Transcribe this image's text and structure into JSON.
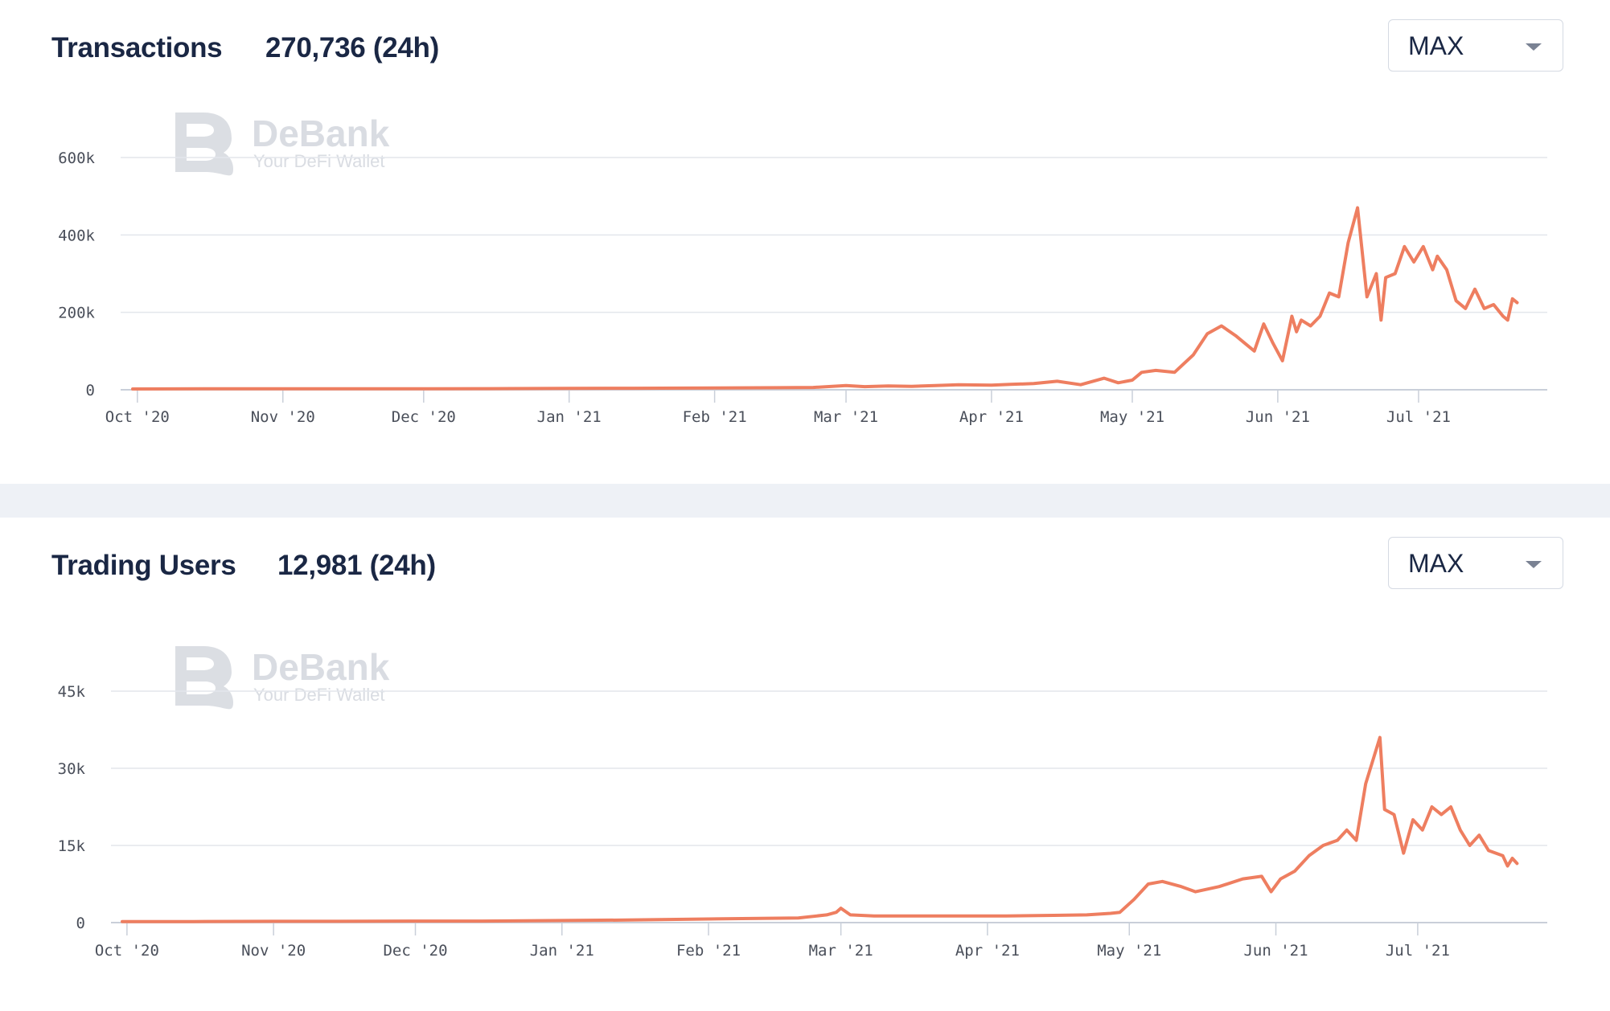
{
  "panels": {
    "transactions": {
      "title": "Transactions",
      "value": "270,736 (24h)",
      "range": "MAX"
    },
    "users": {
      "title": "Trading Users",
      "value": "12,981 (24h)",
      "range": "MAX"
    }
  },
  "watermark": {
    "name": "DeBank",
    "tagline": "Your DeFi Wallet"
  },
  "colors": {
    "line": "#ee7e60",
    "grid": "#e3e6ec",
    "axis": "#c9cfd9",
    "tick_text": "#4a4f5a",
    "watermark": "#d9dce2"
  },
  "chart_data": [
    {
      "type": "line",
      "title": "Transactions",
      "x_tick_labels": [
        "Oct '20",
        "Nov '20",
        "Dec '20",
        "Jan '21",
        "Feb '21",
        "Mar '21",
        "Apr '21",
        "May '21",
        "Jun '21",
        "Jul '21"
      ],
      "y_tick_labels": [
        "0",
        "200k",
        "400k",
        "600k"
      ],
      "y_ticks": [
        0,
        200000,
        400000,
        600000
      ],
      "ylim": [
        0,
        600000
      ],
      "xlim": [
        "2020-09-30",
        "2021-07-25"
      ],
      "grid": true,
      "legend": "none",
      "series": [
        {
          "x": [
            "2020-09-30",
            "2020-10-15",
            "2020-11-01",
            "2020-11-15",
            "2020-12-01",
            "2020-12-15",
            "2021-01-01",
            "2021-01-15",
            "2021-02-01",
            "2021-02-15",
            "2021-02-22",
            "2021-03-01",
            "2021-03-05",
            "2021-03-10",
            "2021-03-15",
            "2021-03-20",
            "2021-03-25",
            "2021-04-01",
            "2021-04-05",
            "2021-04-10",
            "2021-04-15",
            "2021-04-20",
            "2021-04-25",
            "2021-04-28",
            "2021-05-01",
            "2021-05-03",
            "2021-05-06",
            "2021-05-10",
            "2021-05-14",
            "2021-05-17",
            "2021-05-20",
            "2021-05-23",
            "2021-05-25",
            "2021-05-27",
            "2021-05-29",
            "2021-05-31",
            "2021-06-02",
            "2021-06-04",
            "2021-06-05",
            "2021-06-06",
            "2021-06-08",
            "2021-06-10",
            "2021-06-12",
            "2021-06-14",
            "2021-06-16",
            "2021-06-18",
            "2021-06-20",
            "2021-06-22",
            "2021-06-23",
            "2021-06-24",
            "2021-06-26",
            "2021-06-28",
            "2021-06-30",
            "2021-07-02",
            "2021-07-04",
            "2021-07-05",
            "2021-07-07",
            "2021-07-09",
            "2021-07-11",
            "2021-07-13",
            "2021-07-15",
            "2021-07-17",
            "2021-07-19",
            "2021-07-20",
            "2021-07-21",
            "2021-07-22"
          ],
          "values": [
            2000,
            2500,
            2600,
            2500,
            2500,
            3000,
            3500,
            4000,
            4500,
            5500,
            6000,
            11000,
            8000,
            10000,
            9000,
            11000,
            13000,
            12000,
            14000,
            16000,
            22000,
            13000,
            30000,
            18000,
            25000,
            45000,
            50000,
            45000,
            90000,
            145000,
            165000,
            140000,
            120000,
            100000,
            170000,
            120000,
            75000,
            190000,
            150000,
            180000,
            165000,
            190000,
            250000,
            240000,
            380000,
            470000,
            240000,
            300000,
            180000,
            290000,
            300000,
            370000,
            330000,
            370000,
            310000,
            345000,
            310000,
            230000,
            210000,
            260000,
            210000,
            220000,
            190000,
            180000,
            235000,
            225000
          ]
        }
      ]
    },
    {
      "type": "line",
      "title": "Trading Users",
      "x_tick_labels": [
        "Oct '20",
        "Nov '20",
        "Dec '20",
        "Jan '21",
        "Feb '21",
        "Mar '21",
        "Apr '21",
        "May '21",
        "Jun '21",
        "Jul '21"
      ],
      "y_tick_labels": [
        "0",
        "15k",
        "30k",
        "45k"
      ],
      "y_ticks": [
        0,
        15000,
        30000,
        45000
      ],
      "ylim": [
        0,
        45000
      ],
      "xlim": [
        "2020-09-30",
        "2021-07-25"
      ],
      "grid": true,
      "legend": "none",
      "series": [
        {
          "x": [
            "2020-09-30",
            "2020-10-15",
            "2020-11-01",
            "2020-11-15",
            "2020-12-01",
            "2020-12-15",
            "2021-01-01",
            "2021-01-15",
            "2021-02-01",
            "2021-02-10",
            "2021-02-20",
            "2021-02-26",
            "2021-02-28",
            "2021-03-01",
            "2021-03-03",
            "2021-03-08",
            "2021-03-15",
            "2021-03-25",
            "2021-04-05",
            "2021-04-15",
            "2021-04-22",
            "2021-04-27",
            "2021-04-29",
            "2021-05-02",
            "2021-05-05",
            "2021-05-08",
            "2021-05-12",
            "2021-05-15",
            "2021-05-20",
            "2021-05-25",
            "2021-05-29",
            "2021-05-31",
            "2021-06-02",
            "2021-06-05",
            "2021-06-08",
            "2021-06-11",
            "2021-06-14",
            "2021-06-16",
            "2021-06-18",
            "2021-06-20",
            "2021-06-23",
            "2021-06-24",
            "2021-06-26",
            "2021-06-28",
            "2021-06-30",
            "2021-07-02",
            "2021-07-04",
            "2021-07-06",
            "2021-07-08",
            "2021-07-10",
            "2021-07-12",
            "2021-07-14",
            "2021-07-16",
            "2021-07-19",
            "2021-07-20",
            "2021-07-21",
            "2021-07-22"
          ],
          "values": [
            200,
            200,
            250,
            250,
            300,
            300,
            400,
            500,
            700,
            800,
            900,
            1500,
            2000,
            2800,
            1500,
            1300,
            1300,
            1300,
            1300,
            1400,
            1500,
            1800,
            2000,
            4500,
            7500,
            8000,
            7000,
            6000,
            7000,
            8500,
            9000,
            6000,
            8500,
            10000,
            13000,
            15000,
            16000,
            18000,
            16000,
            27000,
            36000,
            22000,
            21000,
            13500,
            20000,
            18000,
            22500,
            21000,
            22500,
            18000,
            15000,
            17000,
            14000,
            13000,
            11000,
            12500,
            11500
          ]
        }
      ]
    }
  ]
}
